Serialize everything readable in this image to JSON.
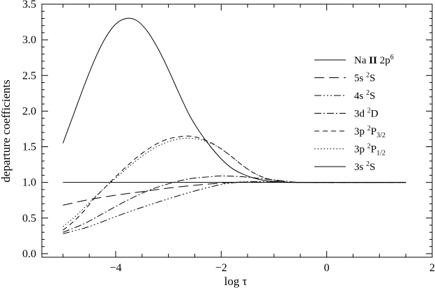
{
  "chart_data": {
    "type": "line",
    "xlabel": "log τ",
    "ylabel": "departure coefficients",
    "xlim": [
      -5.4,
      2.0
    ],
    "ylim": [
      -0.05,
      3.5
    ],
    "xticks": [
      -4,
      -2,
      0,
      2
    ],
    "xtick_labels": [
      "−4",
      "−2",
      "0",
      "2"
    ],
    "xticks_minor": [
      -5,
      -4.5,
      -3.5,
      -3,
      -2.5,
      -1.5,
      -1,
      -0.5,
      0.5,
      1,
      1.5
    ],
    "yticks": [
      0.0,
      0.5,
      1.0,
      1.5,
      2.0,
      2.5,
      3.0,
      3.5
    ],
    "ytick_labels": [
      "0.0",
      "0.5",
      "1.0",
      "1.5",
      "2.0",
      "2.5",
      "3.0",
      "3.5"
    ],
    "yticks_minor": [
      0.1,
      0.2,
      0.3,
      0.4,
      0.6,
      0.7,
      0.8,
      0.9,
      1.1,
      1.2,
      1.3,
      1.4,
      1.6,
      1.7,
      1.8,
      1.9,
      2.1,
      2.2,
      2.3,
      2.4,
      2.6,
      2.7,
      2.8,
      2.9,
      3.1,
      3.2,
      3.3,
      3.4
    ],
    "grid": false,
    "legend_position": "right",
    "series": [
      {
        "name": "Na II 2p6",
        "legend": {
          "base": "Na ",
          "bold": "II",
          "mid": " 2p",
          "sup": "6",
          "sub": ""
        },
        "dash": "",
        "points": [
          [
            -5.0,
            1.55
          ],
          [
            -4.8,
            1.95
          ],
          [
            -4.6,
            2.35
          ],
          [
            -4.4,
            2.72
          ],
          [
            -4.2,
            3.02
          ],
          [
            -4.0,
            3.22
          ],
          [
            -3.8,
            3.3
          ],
          [
            -3.6,
            3.27
          ],
          [
            -3.4,
            3.12
          ],
          [
            -3.2,
            2.88
          ],
          [
            -3.0,
            2.58
          ],
          [
            -2.8,
            2.25
          ],
          [
            -2.6,
            1.94
          ],
          [
            -2.4,
            1.7
          ],
          [
            -2.2,
            1.5
          ],
          [
            -2.0,
            1.33
          ],
          [
            -1.8,
            1.2
          ],
          [
            -1.6,
            1.12
          ],
          [
            -1.4,
            1.065
          ],
          [
            -1.2,
            1.03
          ],
          [
            -1.0,
            1.012
          ],
          [
            -0.8,
            1.004
          ],
          [
            -0.6,
            1.001
          ],
          [
            -0.4,
            1.0
          ],
          [
            0.0,
            1.0
          ],
          [
            0.5,
            1.0
          ],
          [
            1.0,
            1.0
          ],
          [
            1.5,
            1.0
          ]
        ]
      },
      {
        "name": "5s 2S",
        "legend": {
          "base": "5s ",
          "bold": "",
          "mid": "",
          "sup": "2",
          "sub": "",
          "tail": "S"
        },
        "dash": "14,7",
        "points": [
          [
            -5.0,
            0.68
          ],
          [
            -4.5,
            0.76
          ],
          [
            -4.0,
            0.82
          ],
          [
            -3.5,
            0.87
          ],
          [
            -3.0,
            0.92
          ],
          [
            -2.5,
            0.96
          ],
          [
            -2.0,
            0.99
          ],
          [
            -1.8,
            1.0
          ],
          [
            -1.5,
            1.005
          ],
          [
            -1.0,
            1.002
          ],
          [
            -0.5,
            1.0
          ],
          [
            1.5,
            1.0
          ]
        ]
      },
      {
        "name": "4s 2S",
        "legend": {
          "base": "4s ",
          "bold": "",
          "mid": "",
          "sup": "2",
          "sub": "",
          "tail": "S"
        },
        "dash": "10,3,2,3,2,3,2,3",
        "points": [
          [
            -5.0,
            0.28
          ],
          [
            -4.5,
            0.38
          ],
          [
            -4.0,
            0.52
          ],
          [
            -3.5,
            0.65
          ],
          [
            -3.0,
            0.77
          ],
          [
            -2.5,
            0.88
          ],
          [
            -2.0,
            0.97
          ],
          [
            -1.7,
            1.0
          ],
          [
            -1.4,
            1.01
          ],
          [
            -1.0,
            1.005
          ],
          [
            -0.5,
            1.0
          ],
          [
            1.5,
            1.0
          ]
        ]
      },
      {
        "name": "3d 2D",
        "legend": {
          "base": "3d ",
          "bold": "",
          "mid": "",
          "sup": "2",
          "sub": "",
          "tail": "D"
        },
        "dash": "10,3,2,3",
        "points": [
          [
            -5.0,
            0.3
          ],
          [
            -4.6,
            0.42
          ],
          [
            -4.2,
            0.58
          ],
          [
            -3.8,
            0.74
          ],
          [
            -3.4,
            0.88
          ],
          [
            -3.0,
            0.98
          ],
          [
            -2.6,
            1.05
          ],
          [
            -2.2,
            1.08
          ],
          [
            -2.0,
            1.09
          ],
          [
            -1.6,
            1.08
          ],
          [
            -1.2,
            1.05
          ],
          [
            -0.8,
            1.02
          ],
          [
            -0.4,
            1.0
          ],
          [
            1.5,
            1.0
          ]
        ]
      },
      {
        "name": "3p 2P3/2",
        "legend": {
          "base": "3p ",
          "bold": "",
          "mid": "",
          "sup": "2",
          "sub": "3/2",
          "tail": "P"
        },
        "dash": "7,5",
        "points": [
          [
            -5.0,
            0.33
          ],
          [
            -4.8,
            0.45
          ],
          [
            -4.6,
            0.6
          ],
          [
            -4.4,
            0.78
          ],
          [
            -4.2,
            0.93
          ],
          [
            -4.0,
            1.08
          ],
          [
            -3.8,
            1.22
          ],
          [
            -3.6,
            1.35
          ],
          [
            -3.4,
            1.46
          ],
          [
            -3.2,
            1.55
          ],
          [
            -3.0,
            1.61
          ],
          [
            -2.8,
            1.64
          ],
          [
            -2.6,
            1.65
          ],
          [
            -2.4,
            1.62
          ],
          [
            -2.2,
            1.56
          ],
          [
            -2.0,
            1.47
          ],
          [
            -1.8,
            1.36
          ],
          [
            -1.6,
            1.24
          ],
          [
            -1.4,
            1.14
          ],
          [
            -1.2,
            1.07
          ],
          [
            -1.0,
            1.03
          ],
          [
            -0.8,
            1.01
          ],
          [
            -0.6,
            1.0
          ],
          [
            1.5,
            1.0
          ]
        ]
      },
      {
        "name": "3p 2P1/2",
        "legend": {
          "base": "3p ",
          "bold": "",
          "mid": "",
          "sup": "2",
          "sub": "1/2",
          "tail": "P"
        },
        "dash": "1.5,3",
        "points": [
          [
            -5.0,
            0.38
          ],
          [
            -4.8,
            0.5
          ],
          [
            -4.6,
            0.64
          ],
          [
            -4.4,
            0.79
          ],
          [
            -4.2,
            0.93
          ],
          [
            -4.0,
            1.06
          ],
          [
            -3.8,
            1.19
          ],
          [
            -3.6,
            1.31
          ],
          [
            -3.4,
            1.42
          ],
          [
            -3.2,
            1.51
          ],
          [
            -3.0,
            1.57
          ],
          [
            -2.8,
            1.61
          ],
          [
            -2.6,
            1.62
          ],
          [
            -2.4,
            1.6
          ],
          [
            -2.2,
            1.55
          ],
          [
            -2.0,
            1.47
          ],
          [
            -1.8,
            1.36
          ],
          [
            -1.6,
            1.24
          ],
          [
            -1.4,
            1.14
          ],
          [
            -1.2,
            1.07
          ],
          [
            -1.0,
            1.03
          ],
          [
            -0.8,
            1.01
          ],
          [
            -0.6,
            1.0
          ],
          [
            1.5,
            1.0
          ]
        ]
      },
      {
        "name": "3s 2S",
        "legend": {
          "base": "3s ",
          "bold": "",
          "mid": "",
          "sup": "2",
          "sub": "",
          "tail": "S"
        },
        "dash": "",
        "points": [
          [
            -5.0,
            1.0
          ],
          [
            1.5,
            1.0
          ]
        ]
      }
    ]
  }
}
